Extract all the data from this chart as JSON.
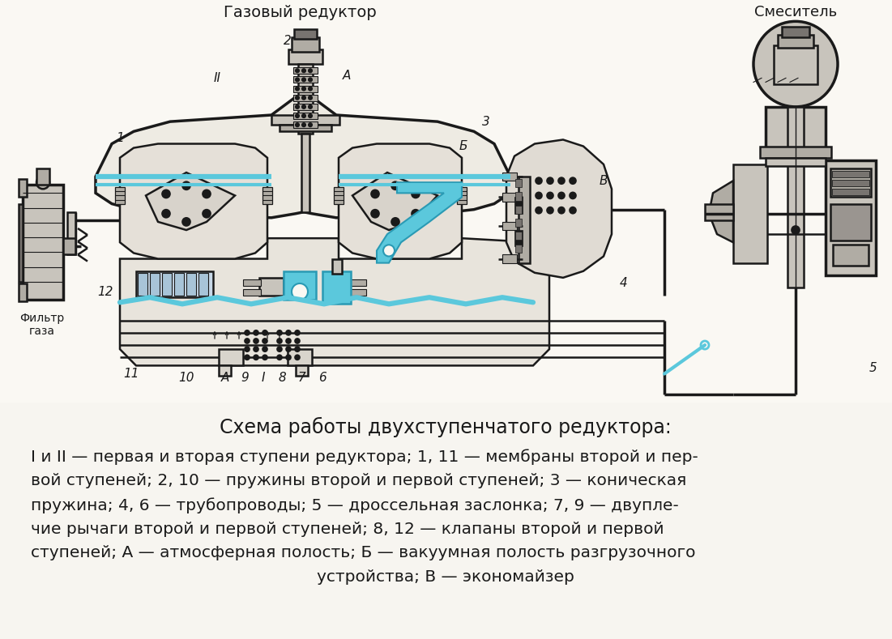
{
  "bg_color": "#f7f5f0",
  "bg_diagram": "#faf8f3",
  "dark": "#1a1a1a",
  "cyan": "#5bc8dc",
  "gray1": "#9a9590",
  "gray2": "#c8c4bc",
  "gray3": "#b0aca4",
  "gray4": "#787470",
  "title_reducer": "Газовый редуктор",
  "title_mixer": "Смеситель",
  "caption_title": "Схема работы двухступенчатого редуктора:",
  "cap_line1": "I и II — первая и вторая ступени редуктора; 1, 11 — мембраны второй и пер-",
  "cap_line2": "вой ступеней; 2, 10 — пружины второй и первой ступеней; 3 — коническая",
  "cap_line3": "пружина; 4, 6 — трубопроводы; 5 — дроссельная заслонка; 7, 9 — двупле-",
  "cap_line4": "чие рычаги второй и первой ступеней; 8, 12 — клапаны второй и первой",
  "cap_line5": "ступеней; А — атмосферная полость; Б — вакуумная полость разгрузочного",
  "cap_line6": "устройства; В — экономайзер",
  "lw_main": 1.8,
  "lw_thick": 2.5,
  "lw_cyan": 4.5
}
